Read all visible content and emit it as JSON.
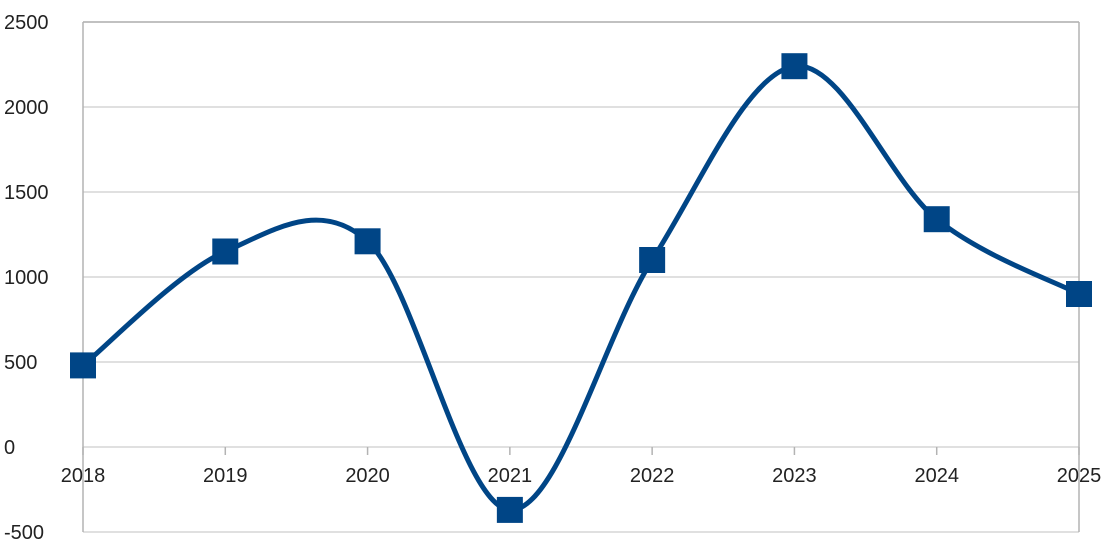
{
  "chart_data": {
    "type": "line",
    "title": "",
    "xlabel": "",
    "ylabel": "",
    "x": [
      "2018",
      "2019",
      "2020",
      "2021",
      "2022",
      "2023",
      "2024",
      "2025"
    ],
    "series": [
      {
        "values": [
          480,
          1150,
          1210,
          -370,
          1100,
          2240,
          1340,
          900
        ]
      }
    ],
    "ylim": [
      -500,
      2500
    ],
    "y_ticks": [
      "2500",
      "2000",
      "1500",
      "1000",
      "500",
      "0",
      "-500"
    ],
    "y_tick_values": [
      2500,
      2000,
      1500,
      1000,
      500,
      0,
      -500
    ],
    "grid": true,
    "smooth": true,
    "marker": "square",
    "line_color": "#004586",
    "grid_color": "#d6d6d6",
    "axis_color": "#b3b3b3"
  }
}
